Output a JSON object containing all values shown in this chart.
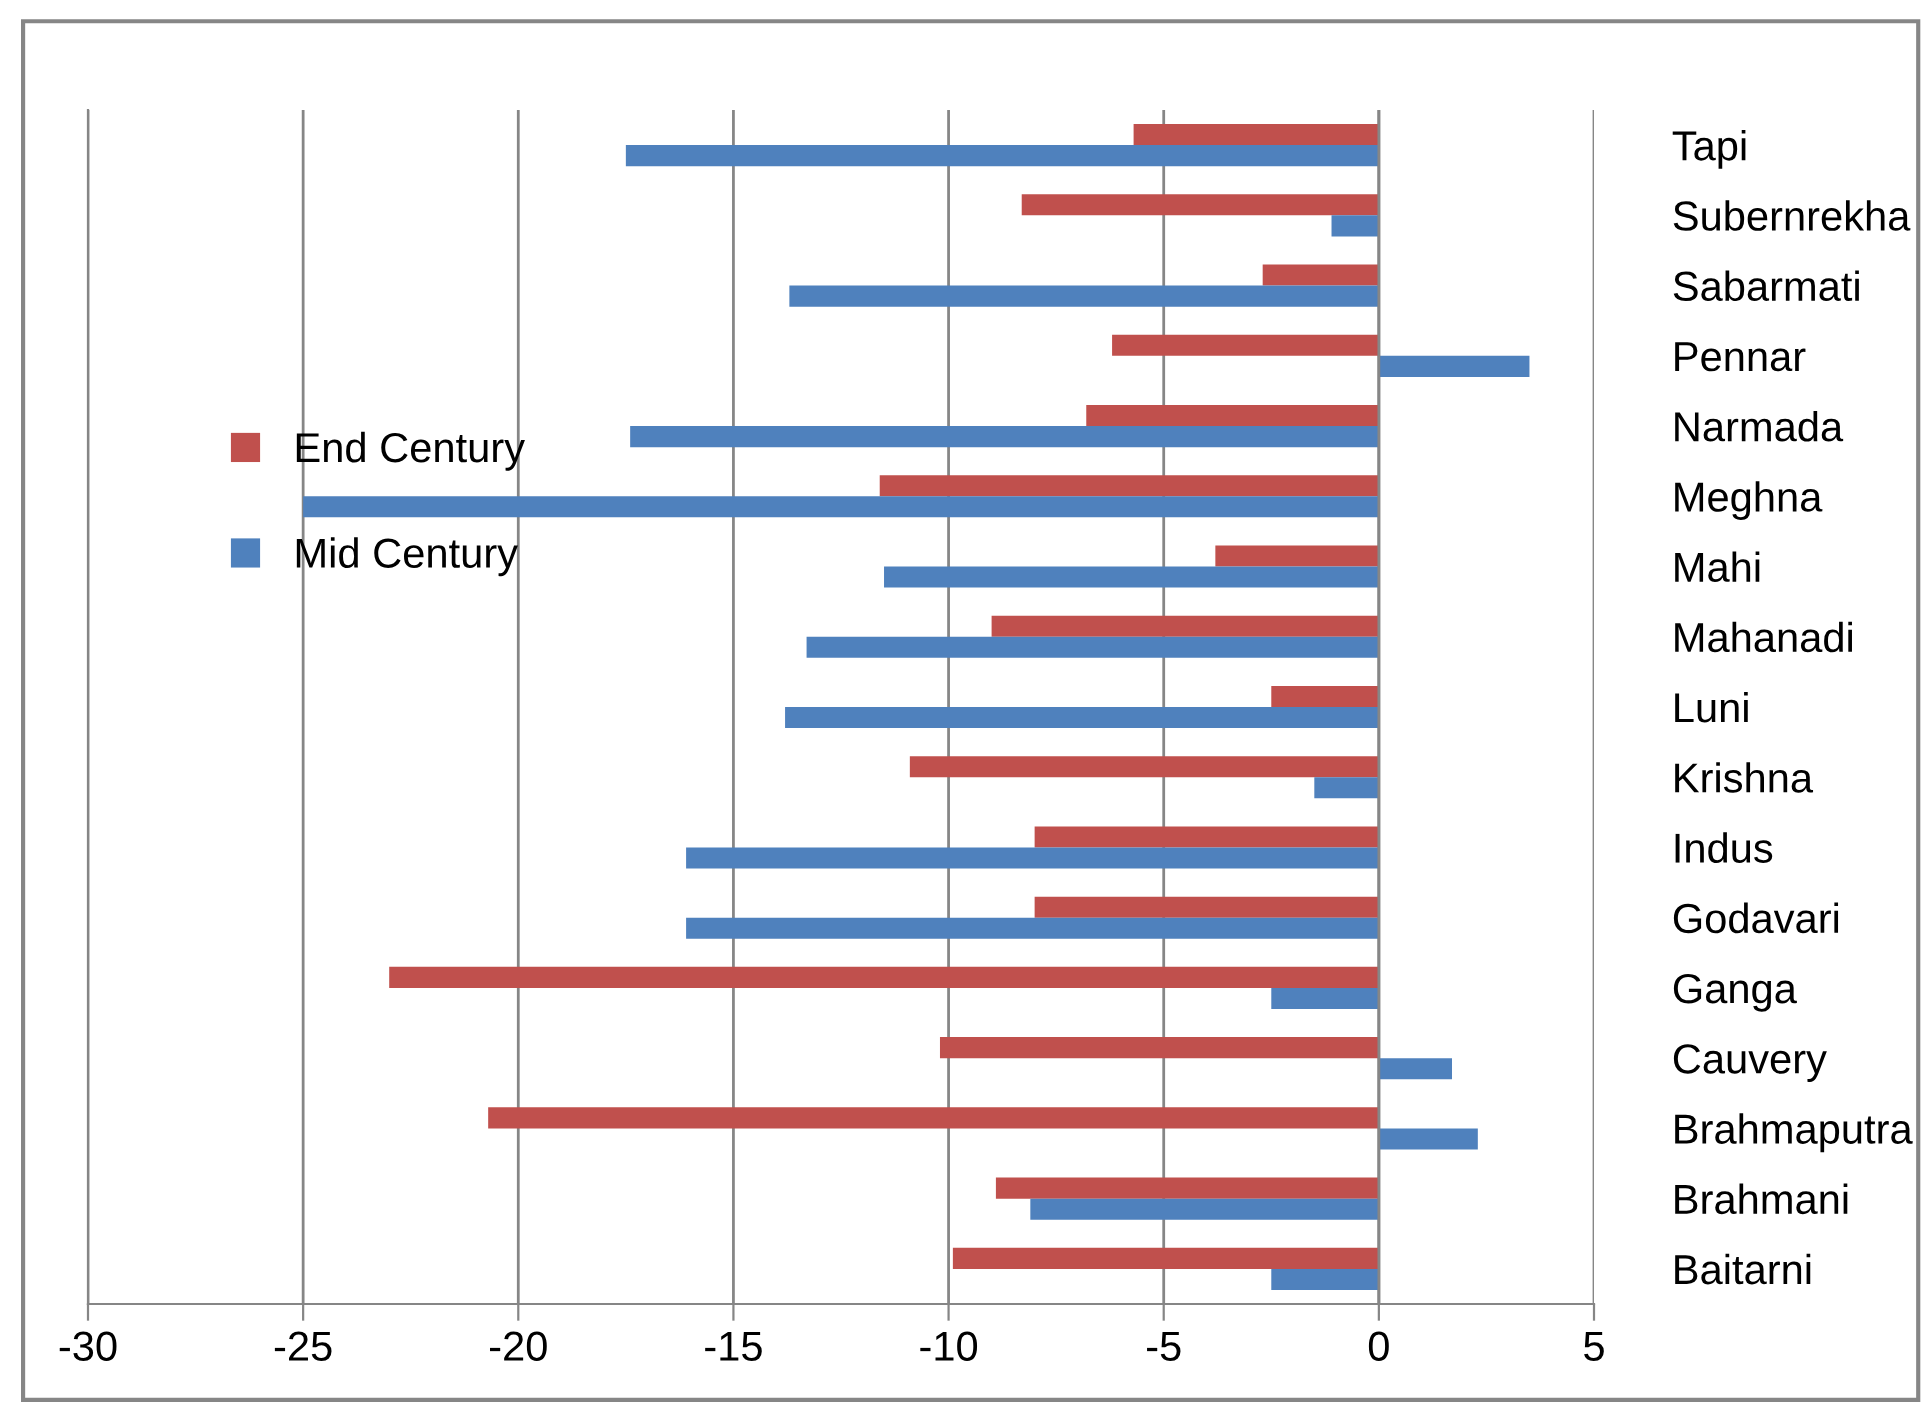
{
  "chart_data": {
    "type": "bar",
    "orientation": "horizontal",
    "categories": [
      "Tapi",
      "Subernrekha",
      "Sabarmati",
      "Pennar",
      "Narmada",
      "Meghna",
      "Mahi",
      "Mahanadi",
      "Luni",
      "Krishna",
      "Indus",
      "Godavari",
      "Ganga",
      "Cauvery",
      "Brahmaputra",
      "Brahmani",
      "Baitarni"
    ],
    "series": [
      {
        "name": "End Century",
        "color": "#c0504d",
        "values": [
          -5.7,
          -8.3,
          -2.7,
          -6.2,
          -6.8,
          -11.6,
          -3.8,
          -9.0,
          -2.5,
          -10.9,
          -8.0,
          -8.0,
          -23.0,
          -10.2,
          -20.7,
          -8.9,
          -9.9
        ]
      },
      {
        "name": "Mid Century",
        "color": "#4f81bd",
        "values": [
          -17.5,
          -1.1,
          -13.7,
          3.5,
          -17.4,
          -25.0,
          -11.5,
          -13.3,
          -13.8,
          -1.5,
          -16.1,
          -16.1,
          -2.5,
          1.7,
          2.3,
          -8.1,
          -2.5
        ]
      }
    ],
    "xlim": [
      -30,
      5
    ],
    "xticks": [
      -30,
      -25,
      -20,
      -15,
      -10,
      -5,
      0,
      5
    ],
    "grid": "x",
    "legend": "left"
  }
}
